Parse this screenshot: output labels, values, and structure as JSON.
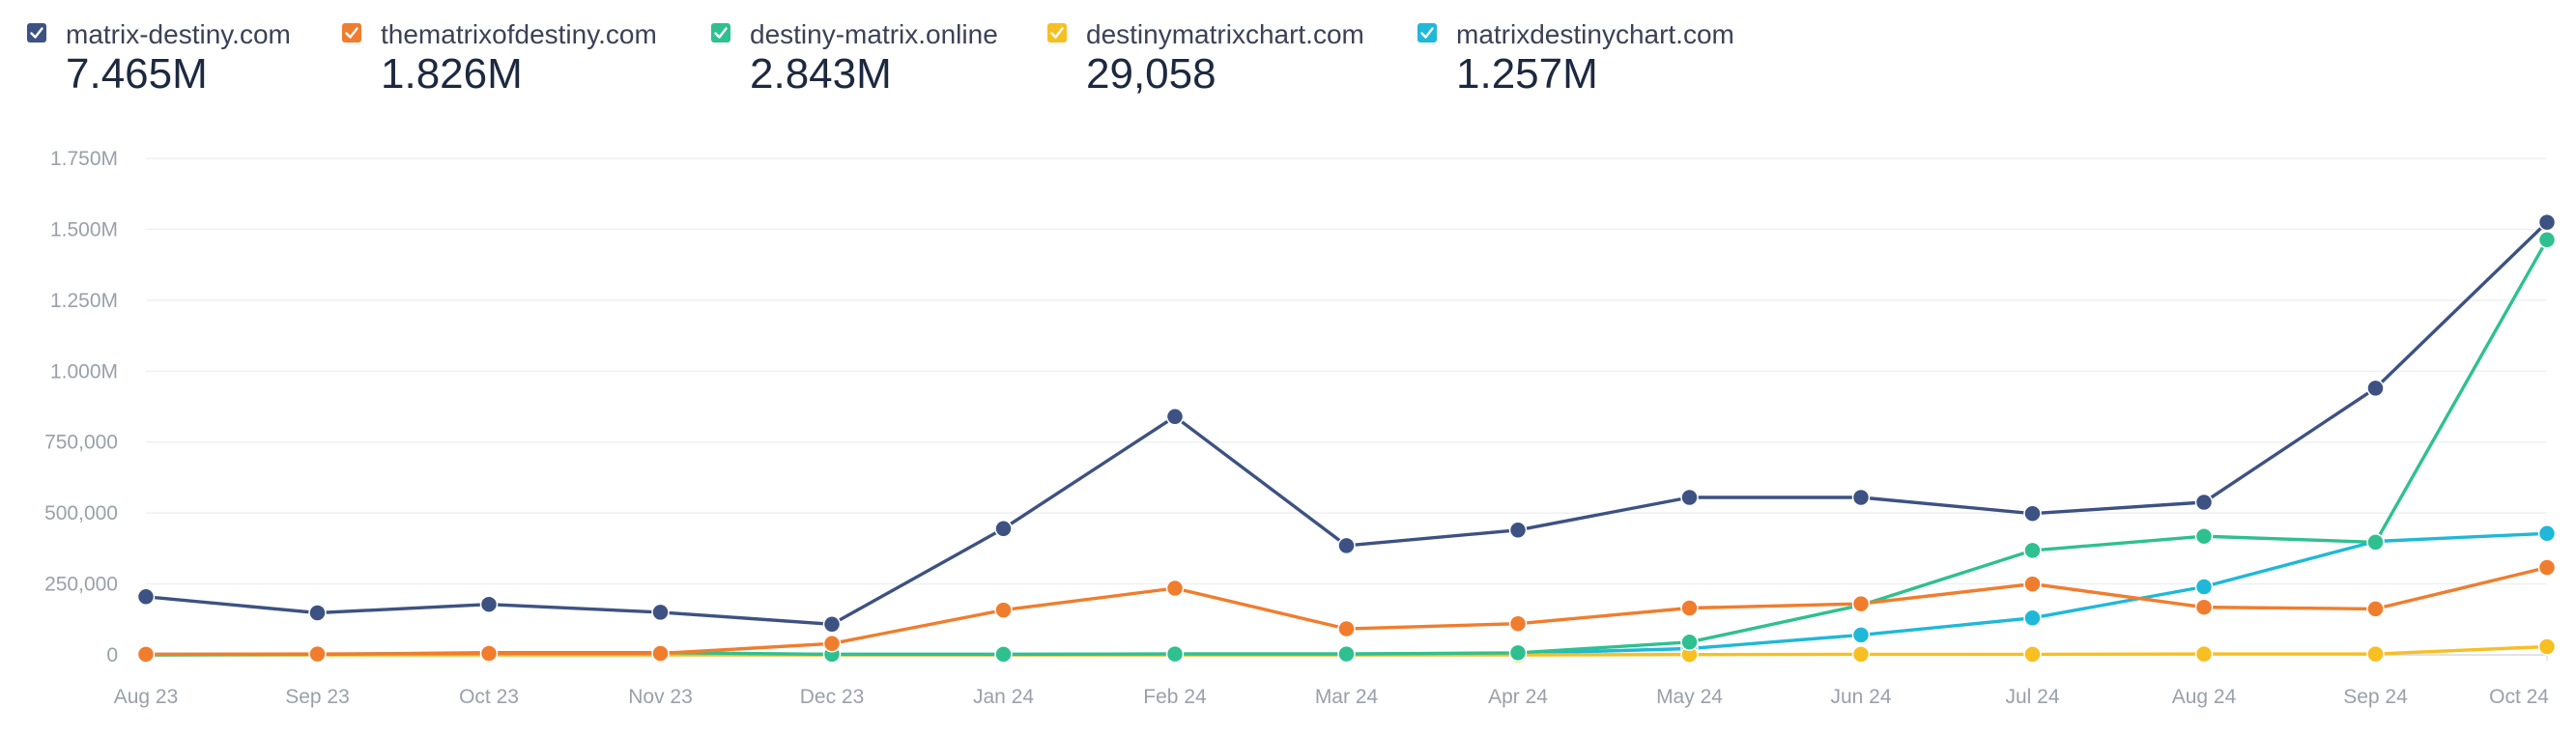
{
  "legend": [
    {
      "label": "matrix-destiny.com",
      "total": "7.465M",
      "color": "#3d5282",
      "checked": true
    },
    {
      "label": "thematrixofdestiny.com",
      "total": "1.826M",
      "color": "#f07d2d",
      "checked": true
    },
    {
      "label": "destiny-matrix.online",
      "total": "2.843M",
      "color": "#2fc08f",
      "checked": true
    },
    {
      "label": "destinymatrixchart.com",
      "total": "29,058",
      "color": "#f7bf22",
      "checked": true
    },
    {
      "label": "matrixdestinychart.com",
      "total": "1.257M",
      "color": "#1fb8d8",
      "checked": true
    }
  ],
  "chart_data": {
    "type": "line",
    "categories": [
      "Aug 23",
      "Sep 23",
      "Oct 23",
      "Nov 23",
      "Dec 23",
      "Jan 24",
      "Feb 24",
      "Mar 24",
      "Apr 24",
      "May 24",
      "Jun 24",
      "Jul 24",
      "Aug 24",
      "Sep 24",
      "Oct 24"
    ],
    "ylim": [
      0,
      1750000
    ],
    "y_ticks": [
      0,
      250000,
      500000,
      750000,
      1000000,
      1250000,
      1500000,
      1750000
    ],
    "y_tick_labels": [
      "0",
      "250,000",
      "500,000",
      "750,000",
      "1.000M",
      "1.250M",
      "1.500M",
      "1.750M"
    ],
    "grid": true,
    "legend_position": "top",
    "series": [
      {
        "name": "matrix-destiny.com",
        "color": "#3d5282",
        "values": [
          205000,
          148000,
          178000,
          150000,
          108000,
          445000,
          840000,
          385000,
          440000,
          555000,
          555000,
          498000,
          538000,
          940000,
          1525000
        ]
      },
      {
        "name": "thematrixofdestiny.com",
        "color": "#f07d2d",
        "values": [
          2000,
          3000,
          5000,
          5000,
          40000,
          158000,
          235000,
          92000,
          110000,
          165000,
          180000,
          250000,
          168000,
          162000,
          308000
        ]
      },
      {
        "name": "destiny-matrix.online",
        "color": "#2fc08f",
        "values": [
          0,
          2000,
          8000,
          8000,
          2000,
          2000,
          3000,
          3000,
          7000,
          45000,
          175000,
          368000,
          418000,
          397000,
          1463000
        ]
      },
      {
        "name": "destinymatrixchart.com",
        "color": "#f7bf22",
        "values": [
          0,
          0,
          0,
          0,
          0,
          0,
          0,
          0,
          0,
          1000,
          2000,
          2000,
          3000,
          3000,
          29000
        ]
      },
      {
        "name": "matrixdestinychart.com",
        "color": "#1fb8d8",
        "values": [
          2000,
          2000,
          2000,
          2000,
          2000,
          2000,
          3000,
          3000,
          5000,
          22000,
          70000,
          130000,
          240000,
          400000,
          428000
        ]
      }
    ]
  }
}
